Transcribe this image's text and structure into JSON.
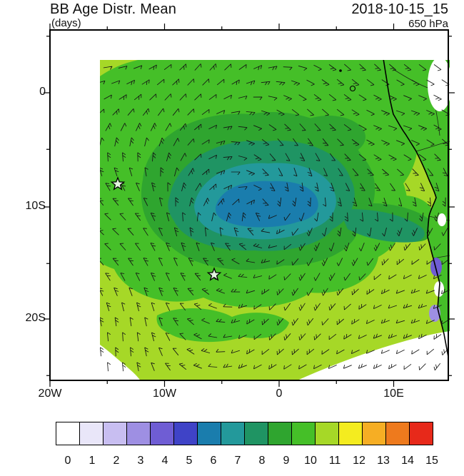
{
  "header": {
    "title": "BB Age Distr. Mean",
    "units": "(days)",
    "datetime": "2018-10-15_15",
    "level": "650 hPa"
  },
  "axes": {
    "y_tick_labels": [
      "0",
      "10S",
      "20S"
    ],
    "x_tick_labels": [
      "20W",
      "10W",
      "0",
      "10E"
    ]
  },
  "colorbar": {
    "labels": [
      "0",
      "1",
      "2",
      "3",
      "4",
      "5",
      "6",
      "7",
      "8",
      "9",
      "10",
      "11",
      "12",
      "13",
      "14",
      "15"
    ],
    "colors": [
      "#FFFFFF",
      "#E9E6F9",
      "#C8BEF1",
      "#9E8FE3",
      "#6F5DD4",
      "#3F43C7",
      "#1A7DAD",
      "#23999B",
      "#1F9463",
      "#2FA52F",
      "#45BF28",
      "#A6D827",
      "#F4EC1F",
      "#F6AE24",
      "#EE7A1D",
      "#E7291A"
    ]
  },
  "chart_data": {
    "type": "heatmap",
    "title": "BB Age Distr. Mean",
    "units": "days",
    "level": "650 hPa",
    "valid_time": "2018-10-15_15",
    "projection": "lat-lon map of tropical South Atlantic and West African coast",
    "lon_range": [
      "20W",
      "15E"
    ],
    "lat_range": [
      "6N",
      "26S"
    ],
    "colorbar_range": [
      0,
      15
    ],
    "overlay": "650 hPa wind barbs (black), anticyclonic gyre centered near 4W 10S",
    "field_summary": [
      {
        "region": "most of domain (background)",
        "value_days": "10-11"
      },
      {
        "region": "broad interior gyre ring",
        "value_days": "8-9"
      },
      {
        "region": "core minimum near 4W, 10S, elongated east-west with tongue toward Angolan coast",
        "value_days": "5-7"
      },
      {
        "region": "southwest corner of domain",
        "value_days": "0 (white)"
      },
      {
        "region": "far southeast corner of domain",
        "value_days": "0 (white)"
      },
      {
        "region": "coastal land patches near 12E",
        "value_days": "0-4 (white / blue)"
      }
    ],
    "markers": [
      {
        "type": "star",
        "lon": "14W",
        "lat": "8S"
      },
      {
        "type": "star",
        "lon": "6W",
        "lat": "16S"
      }
    ]
  }
}
